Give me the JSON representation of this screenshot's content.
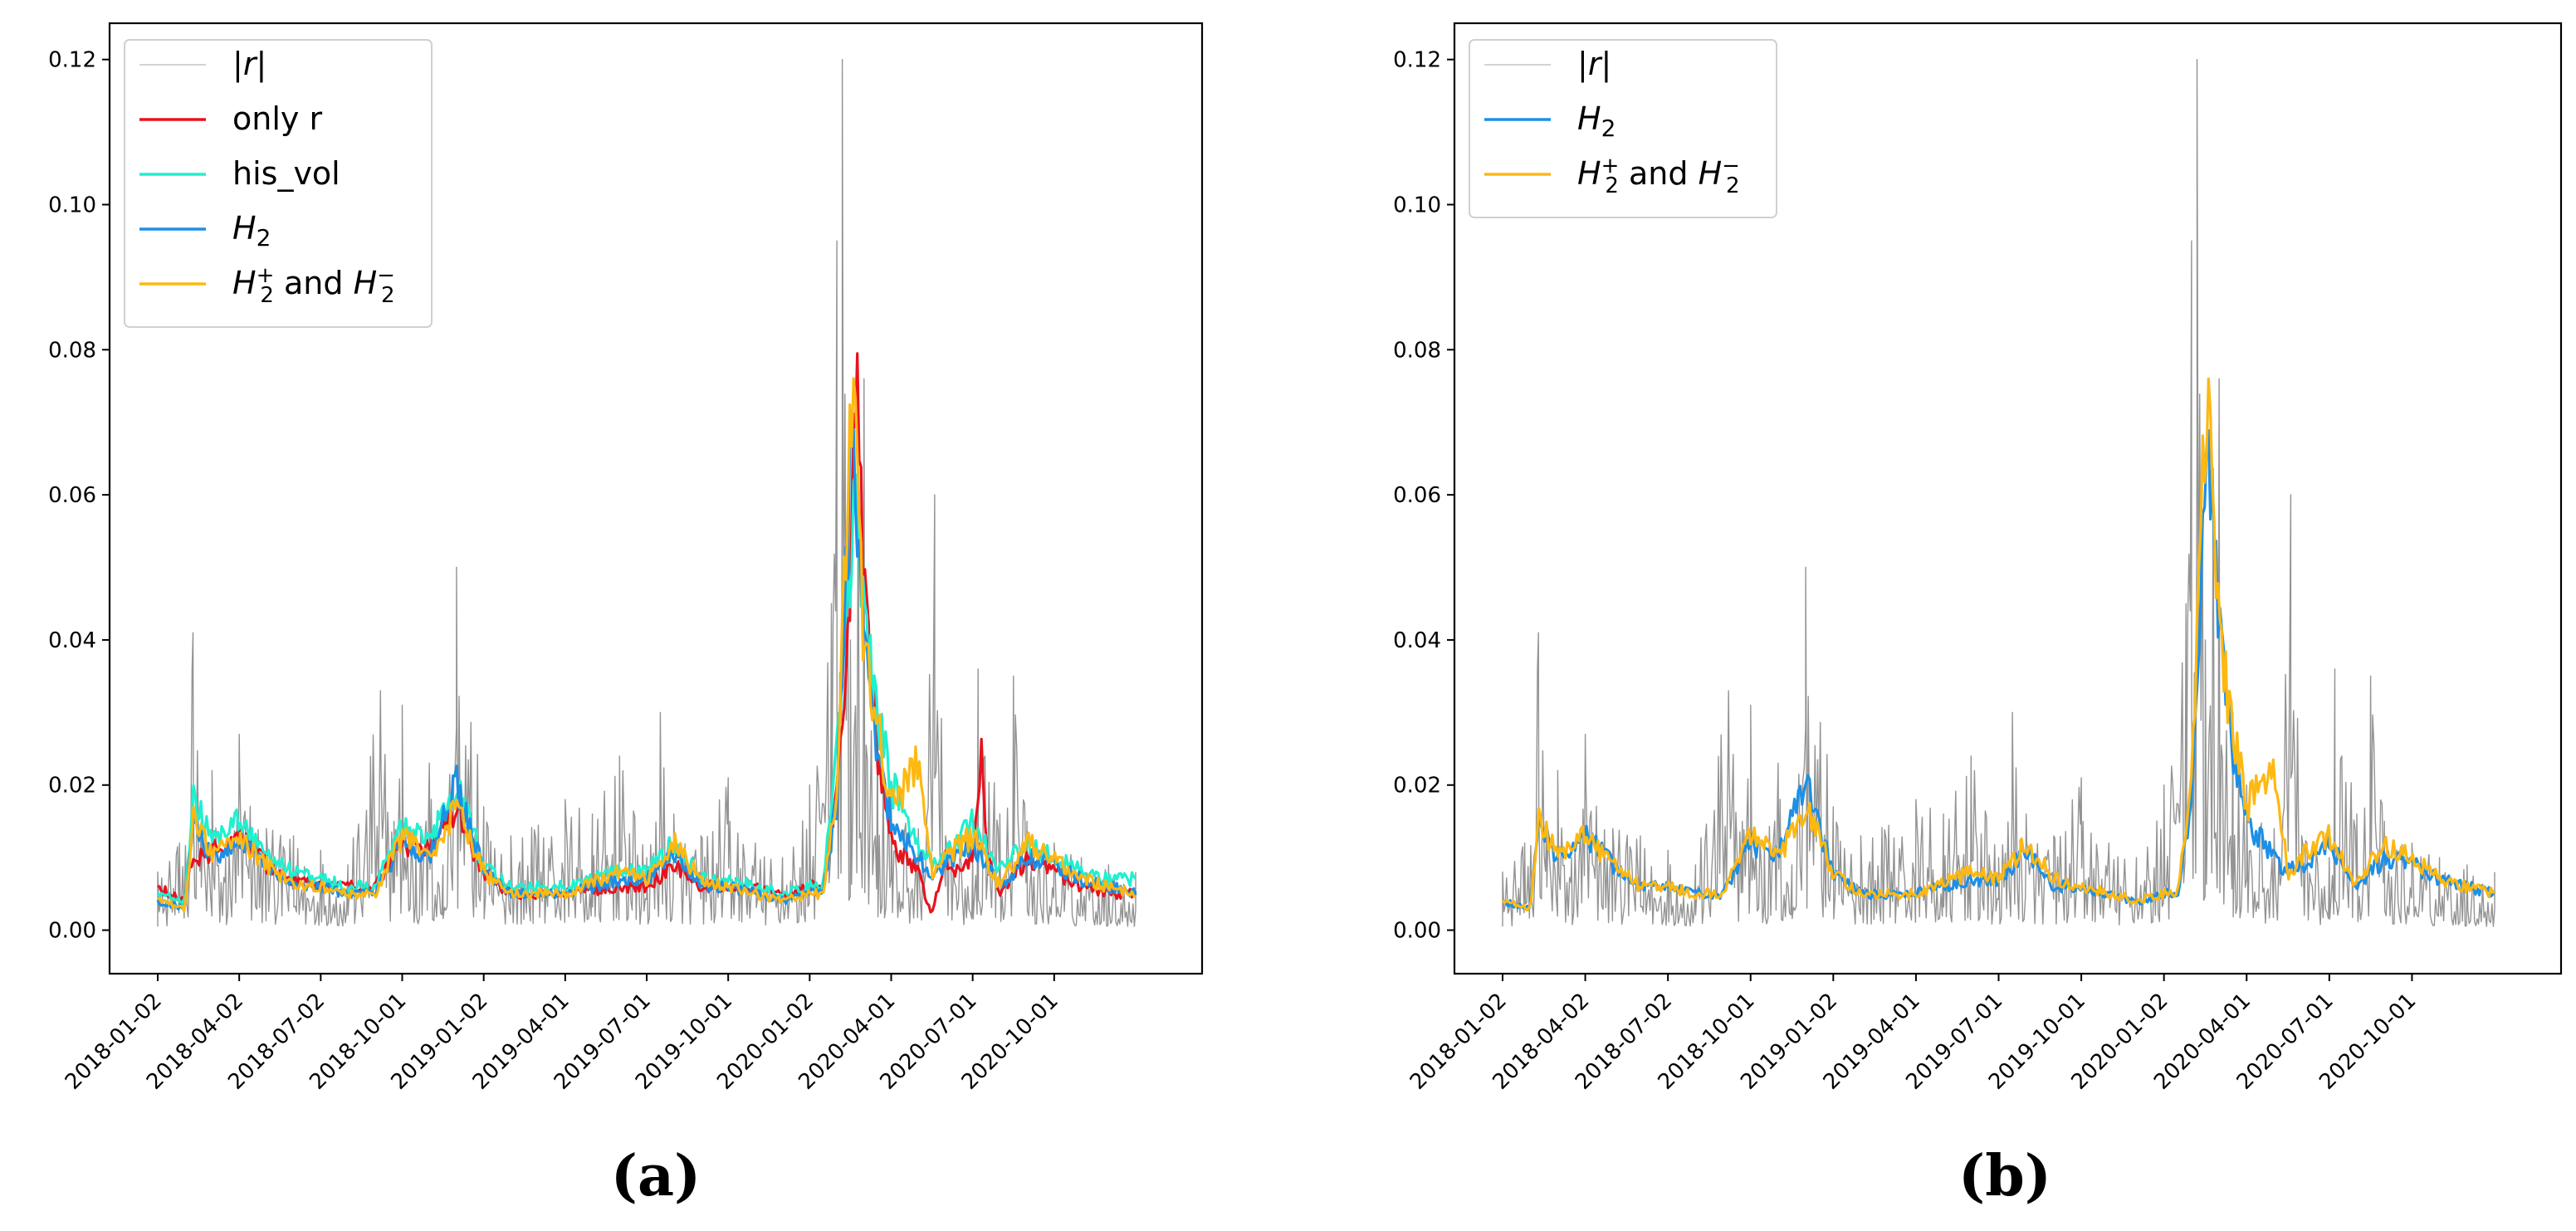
{
  "figure": {
    "panels": [
      {
        "label": "(a)",
        "legend": [
          "|r|",
          "only r",
          "his_vol",
          "H2",
          "H2+ and H2−"
        ]
      },
      {
        "label": "(b)",
        "legend": [
          "|r|",
          "H2",
          "H2+ and H2−"
        ]
      }
    ]
  },
  "colors": {
    "abs_r": "#808080",
    "only_r": "#e8121e",
    "his_vol": "#1ff0d0",
    "H2": "#1c8fe6",
    "H2pm": "#fdb812"
  },
  "chart_data": [
    {
      "type": "line",
      "panel": "(a)",
      "title": "",
      "xlabel": "",
      "ylabel": "",
      "ylim": [
        -0.006,
        0.125
      ],
      "yticks": [
        "0.00",
        "0.02",
        "0.04",
        "0.06",
        "0.08",
        "0.10",
        "0.12"
      ],
      "xticks": [
        "2018-01-02",
        "2018-04-02",
        "2018-07-02",
        "2018-10-01",
        "2019-01-02",
        "2019-04-01",
        "2019-07-01",
        "2019-10-01",
        "2020-01-02",
        "2020-04-01",
        "2020-07-01",
        "2020-10-01"
      ],
      "x_range_months": [
        0,
        36
      ],
      "legend_position": "top-left",
      "series": [
        {
          "name": "|r|",
          "key": "abs_r",
          "x": [
            0,
            0.8,
            1.3,
            1.6,
            2,
            2.5,
            3,
            4,
            5,
            6,
            7,
            8.2,
            8.7,
            9,
            9.5,
            10,
            10.5,
            11,
            12,
            13,
            15,
            16,
            17,
            18,
            18.5,
            19,
            20,
            21,
            22,
            23,
            24,
            24.8,
            25,
            25.2,
            25.5,
            26,
            26.5,
            27,
            28,
            28.6,
            29,
            30,
            30.2,
            31,
            31.5,
            32,
            33,
            34,
            35,
            36
          ],
          "values": [
            0.008,
            0.012,
            0.041,
            0.015,
            0.022,
            0.01,
            0.027,
            0.014,
            0.013,
            0.011,
            0.009,
            0.033,
            0.015,
            0.031,
            0.012,
            0.023,
            0.009,
            0.05,
            0.017,
            0.013,
            0.018,
            0.016,
            0.024,
            0.01,
            0.03,
            0.016,
            0.013,
            0.021,
            0.012,
            0.01,
            0.02,
            0.045,
            0.095,
            0.12,
            0.04,
            0.076,
            0.03,
            0.02,
            0.014,
            0.06,
            0.013,
            0.01,
            0.036,
            0.016,
            0.035,
            0.015,
            0.012,
            0.01,
            0.009,
            0.008
          ]
        },
        {
          "name": "only r",
          "key": "only_r",
          "x": [
            0,
            1,
            1.2,
            2,
            3,
            4,
            5,
            6,
            7,
            8,
            9,
            10,
            11,
            12,
            13,
            15,
            17,
            18,
            19,
            20,
            21,
            22,
            23,
            24,
            24.5,
            25,
            25.5,
            25.7,
            26,
            26.5,
            27,
            28,
            28.5,
            29,
            29.5,
            30,
            30.3,
            30.5,
            31,
            32,
            33,
            34,
            35,
            36
          ],
          "values": [
            0.006,
            0.004,
            0.009,
            0.011,
            0.013,
            0.009,
            0.007,
            0.006,
            0.006,
            0.006,
            0.012,
            0.011,
            0.016,
            0.008,
            0.005,
            0.005,
            0.006,
            0.006,
            0.009,
            0.006,
            0.006,
            0.006,
            0.005,
            0.006,
            0.006,
            0.02,
            0.045,
            0.076,
            0.045,
            0.025,
            0.012,
            0.008,
            0.002,
            0.01,
            0.008,
            0.01,
            0.025,
            0.012,
            0.005,
            0.01,
            0.008,
            0.006,
            0.005,
            0.005
          ]
        },
        {
          "name": "his_vol",
          "key": "his_vol",
          "x": [
            0,
            1,
            1.3,
            2,
            3,
            4,
            5,
            6,
            7,
            8,
            9,
            10,
            11,
            12,
            13,
            15,
            17,
            18,
            19,
            20,
            21,
            22,
            23,
            24,
            24.5,
            25,
            25.5,
            25.7,
            26,
            26.5,
            27,
            28,
            28.5,
            29,
            30,
            31,
            32,
            33,
            34,
            35,
            36
          ],
          "values": [
            0.005,
            0.004,
            0.019,
            0.012,
            0.015,
            0.01,
            0.008,
            0.007,
            0.006,
            0.006,
            0.014,
            0.012,
            0.02,
            0.009,
            0.006,
            0.006,
            0.008,
            0.008,
            0.012,
            0.007,
            0.007,
            0.006,
            0.005,
            0.006,
            0.006,
            0.025,
            0.05,
            0.058,
            0.042,
            0.03,
            0.02,
            0.012,
            0.01,
            0.01,
            0.015,
            0.008,
            0.012,
            0.01,
            0.008,
            0.007,
            0.007
          ]
        },
        {
          "name": "H2",
          "key": "H2",
          "x": [
            0,
            1,
            1.3,
            2,
            3,
            4,
            5,
            6,
            7,
            8,
            9,
            10,
            11,
            12,
            13,
            15,
            17,
            18,
            19,
            20,
            21,
            22,
            23,
            24,
            24.5,
            25,
            25.5,
            25.7,
            26,
            26.5,
            27,
            28,
            28.5,
            29,
            30,
            31,
            32,
            33,
            34,
            35,
            36
          ],
          "values": [
            0.004,
            0.003,
            0.015,
            0.01,
            0.013,
            0.009,
            0.006,
            0.006,
            0.005,
            0.005,
            0.012,
            0.01,
            0.02,
            0.008,
            0.005,
            0.005,
            0.007,
            0.007,
            0.011,
            0.006,
            0.006,
            0.005,
            0.004,
            0.005,
            0.005,
            0.018,
            0.062,
            0.06,
            0.04,
            0.025,
            0.015,
            0.01,
            0.008,
            0.009,
            0.012,
            0.006,
            0.01,
            0.009,
            0.007,
            0.006,
            0.005
          ]
        },
        {
          "name": "H2+ and H2−",
          "key": "H2pm",
          "x": [
            0,
            1,
            1.3,
            2,
            3,
            4,
            5,
            6,
            7,
            8,
            9,
            10,
            11,
            12,
            13,
            15,
            17,
            18,
            19,
            20,
            21,
            22,
            23,
            24,
            24.5,
            25,
            25.5,
            25.7,
            26,
            26.5,
            27,
            28,
            28.5,
            29,
            30,
            31,
            32,
            33,
            34,
            35,
            36
          ],
          "values": [
            0.004,
            0.003,
            0.016,
            0.01,
            0.013,
            0.009,
            0.006,
            0.006,
            0.005,
            0.005,
            0.013,
            0.01,
            0.017,
            0.008,
            0.005,
            0.005,
            0.008,
            0.007,
            0.012,
            0.007,
            0.006,
            0.005,
            0.004,
            0.005,
            0.005,
            0.02,
            0.07,
            0.065,
            0.04,
            0.028,
            0.017,
            0.023,
            0.008,
            0.01,
            0.013,
            0.006,
            0.012,
            0.01,
            0.007,
            0.006,
            0.005
          ]
        }
      ]
    },
    {
      "type": "line",
      "panel": "(b)",
      "title": "",
      "xlabel": "",
      "ylabel": "",
      "ylim": [
        -0.006,
        0.125
      ],
      "yticks": [
        "0.00",
        "0.02",
        "0.04",
        "0.06",
        "0.08",
        "0.10",
        "0.12"
      ],
      "xticks": [
        "2018-01-02",
        "2018-04-02",
        "2018-07-02",
        "2018-10-01",
        "2019-01-02",
        "2019-04-01",
        "2019-07-01",
        "2019-10-01",
        "2020-01-02",
        "2020-04-01",
        "2020-07-01",
        "2020-10-01"
      ],
      "x_range_months": [
        0,
        36
      ],
      "legend_position": "top-left",
      "series": [
        {
          "name": "|r|",
          "key": "abs_r",
          "x": [
            0,
            0.8,
            1.3,
            1.6,
            2,
            2.5,
            3,
            4,
            5,
            6,
            7,
            8.2,
            8.7,
            9,
            9.5,
            10,
            10.5,
            11,
            12,
            13,
            15,
            16,
            17,
            18,
            18.5,
            19,
            20,
            21,
            22,
            23,
            24,
            24.8,
            25,
            25.2,
            25.5,
            26,
            26.5,
            27,
            28,
            28.6,
            29,
            30,
            30.2,
            31,
            31.5,
            32,
            33,
            34,
            35,
            36
          ],
          "values": [
            0.008,
            0.012,
            0.041,
            0.015,
            0.022,
            0.01,
            0.027,
            0.014,
            0.013,
            0.011,
            0.009,
            0.033,
            0.015,
            0.031,
            0.012,
            0.023,
            0.009,
            0.05,
            0.017,
            0.013,
            0.018,
            0.016,
            0.024,
            0.01,
            0.03,
            0.016,
            0.013,
            0.021,
            0.012,
            0.01,
            0.02,
            0.045,
            0.095,
            0.12,
            0.04,
            0.076,
            0.03,
            0.02,
            0.014,
            0.06,
            0.013,
            0.01,
            0.036,
            0.016,
            0.035,
            0.015,
            0.012,
            0.01,
            0.009,
            0.008
          ]
        },
        {
          "name": "H2",
          "key": "H2",
          "x": [
            0,
            1,
            1.3,
            2,
            3,
            4,
            5,
            6,
            7,
            8,
            9,
            10,
            11,
            12,
            13,
            15,
            17,
            18,
            19,
            20,
            21,
            22,
            23,
            24,
            24.5,
            25,
            25.5,
            25.7,
            26,
            26.5,
            27,
            28,
            28.5,
            29,
            30,
            31,
            32,
            33,
            34,
            35,
            36
          ],
          "values": [
            0.004,
            0.003,
            0.015,
            0.01,
            0.013,
            0.009,
            0.006,
            0.006,
            0.005,
            0.005,
            0.012,
            0.01,
            0.02,
            0.008,
            0.005,
            0.005,
            0.007,
            0.007,
            0.011,
            0.006,
            0.006,
            0.005,
            0.004,
            0.005,
            0.005,
            0.018,
            0.062,
            0.06,
            0.04,
            0.025,
            0.015,
            0.01,
            0.008,
            0.009,
            0.012,
            0.006,
            0.01,
            0.009,
            0.007,
            0.006,
            0.005
          ]
        },
        {
          "name": "H2+ and H2−",
          "key": "H2pm",
          "x": [
            0,
            1,
            1.3,
            2,
            3,
            4,
            5,
            6,
            7,
            8,
            9,
            10,
            11,
            12,
            13,
            15,
            17,
            18,
            19,
            20,
            21,
            22,
            23,
            24,
            24.5,
            25,
            25.5,
            25.7,
            26,
            26.5,
            27,
            28,
            28.5,
            29,
            30,
            31,
            32,
            33,
            34,
            35,
            36
          ],
          "values": [
            0.004,
            0.003,
            0.016,
            0.01,
            0.013,
            0.009,
            0.006,
            0.006,
            0.005,
            0.005,
            0.013,
            0.01,
            0.017,
            0.008,
            0.005,
            0.005,
            0.008,
            0.007,
            0.012,
            0.007,
            0.006,
            0.005,
            0.004,
            0.005,
            0.005,
            0.02,
            0.07,
            0.065,
            0.04,
            0.028,
            0.017,
            0.023,
            0.008,
            0.01,
            0.013,
            0.006,
            0.012,
            0.01,
            0.007,
            0.006,
            0.005
          ]
        }
      ]
    }
  ]
}
